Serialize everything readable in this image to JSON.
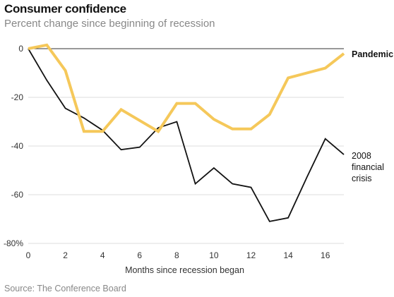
{
  "header": {
    "title": "Consumer confidence",
    "subtitle": "Percent change since beginning of recession"
  },
  "footer": {
    "source": "Source: The Conference Board"
  },
  "chart_data": {
    "type": "line",
    "title": "Consumer confidence",
    "subtitle": "Percent change since beginning of recession",
    "xlabel": "Months since recession began",
    "ylabel": "",
    "xlim": [
      0,
      17
    ],
    "ylim": [
      -80,
      0
    ],
    "x_ticks": [
      0,
      2,
      4,
      6,
      8,
      10,
      12,
      14,
      16
    ],
    "y_ticks": [
      {
        "value": 0,
        "label": "0"
      },
      {
        "value": -20,
        "label": "-20"
      },
      {
        "value": -40,
        "label": "-40"
      },
      {
        "value": -60,
        "label": "-60"
      },
      {
        "value": -80,
        "label": "-80%"
      }
    ],
    "grid": "horizontal",
    "series": [
      {
        "name": "Pandemic",
        "color": "#f5c85a",
        "x": [
          0,
          1,
          2,
          3,
          4,
          5,
          6,
          7,
          8,
          9,
          10,
          11,
          12,
          13,
          14,
          15,
          16,
          17
        ],
        "values": [
          0,
          1.5,
          -9,
          -34,
          -34,
          -25,
          -29.5,
          -34,
          -22.5,
          -22.5,
          -29,
          -33,
          -33,
          -27,
          -12,
          -10,
          -8,
          -2
        ]
      },
      {
        "name": "2008 financial crisis",
        "label_lines": [
          "2008",
          "financial",
          "crisis"
        ],
        "color": "#121212",
        "x": [
          0,
          1,
          2,
          3,
          4,
          5,
          6,
          7,
          8,
          9,
          10,
          11,
          12,
          13,
          14,
          15,
          16,
          17
        ],
        "values": [
          0,
          -13,
          -24.5,
          -28.5,
          -33.5,
          -41.5,
          -40.5,
          -32.5,
          -30,
          -55.5,
          -49,
          -55.5,
          -57,
          -71,
          -69.5,
          -53,
          -37,
          -43.5
        ]
      }
    ]
  }
}
